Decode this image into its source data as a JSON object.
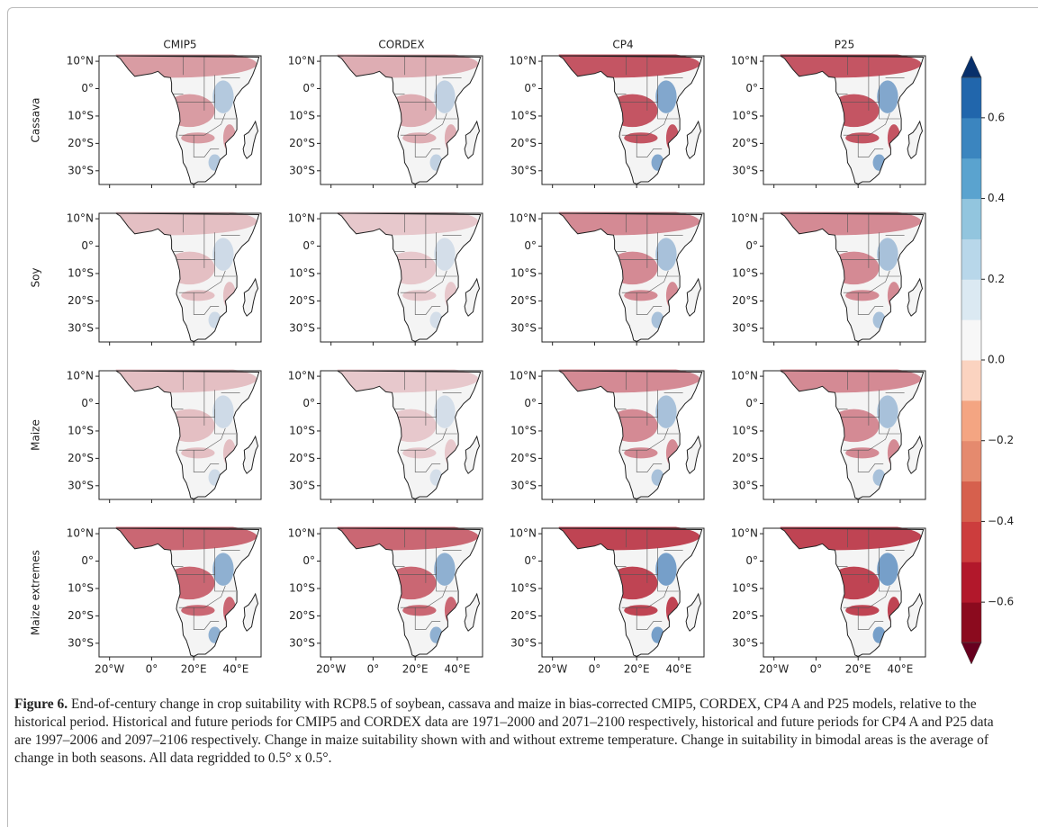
{
  "figure": {
    "columns": [
      "CMIP5",
      "CORDEX",
      "CP4",
      "P25"
    ],
    "rows": [
      "Cassava",
      "Soy",
      "Maize",
      "Maize extremes"
    ],
    "lat_ticks": [
      {
        "value": 10,
        "label": "10°N"
      },
      {
        "value": 0,
        "label": "0°"
      },
      {
        "value": -10,
        "label": "10°S"
      },
      {
        "value": -20,
        "label": "20°S"
      },
      {
        "value": -30,
        "label": "30°S"
      }
    ],
    "ylim": [
      -35,
      12
    ],
    "lon_ticks": [
      {
        "value": -20,
        "label": "20°W"
      },
      {
        "value": 0,
        "label": "0°"
      },
      {
        "value": 20,
        "label": "20°E"
      },
      {
        "value": 40,
        "label": "40°E"
      }
    ],
    "xlim": [
      -25,
      52
    ],
    "colorbar": {
      "lim": [
        -0.7,
        0.7
      ],
      "ticks": [
        0.6,
        0.4,
        0.2,
        {
          "value": 0,
          "label": "0.0"
        },
        {
          "value": -0.2,
          "label": "−0.2"
        },
        {
          "value": -0.4,
          "label": "−0.4"
        },
        {
          "value": -0.6,
          "label": "−0.6"
        }
      ]
    }
  },
  "caption": {
    "label": "Figure 6.",
    "text": "End-of-century change in crop suitability with RCP8.5 of soybean, cassava and maize in bias-corrected CMIP5, CORDEX, CP4 A and P25 models, relative to the historical period. Historical and future periods for CMIP5 and CORDEX data are 1971–2000 and 2071–2100 respectively, historical and future periods for CP4 A and P25 data are 1997–2006 and 2097–2106 respectively. Change in maize suitability shown with and without extreme temperature. Change in suitability in bimodal areas is the average of change in both seasons. All data regridded to 0.5° x 0.5°."
  }
}
